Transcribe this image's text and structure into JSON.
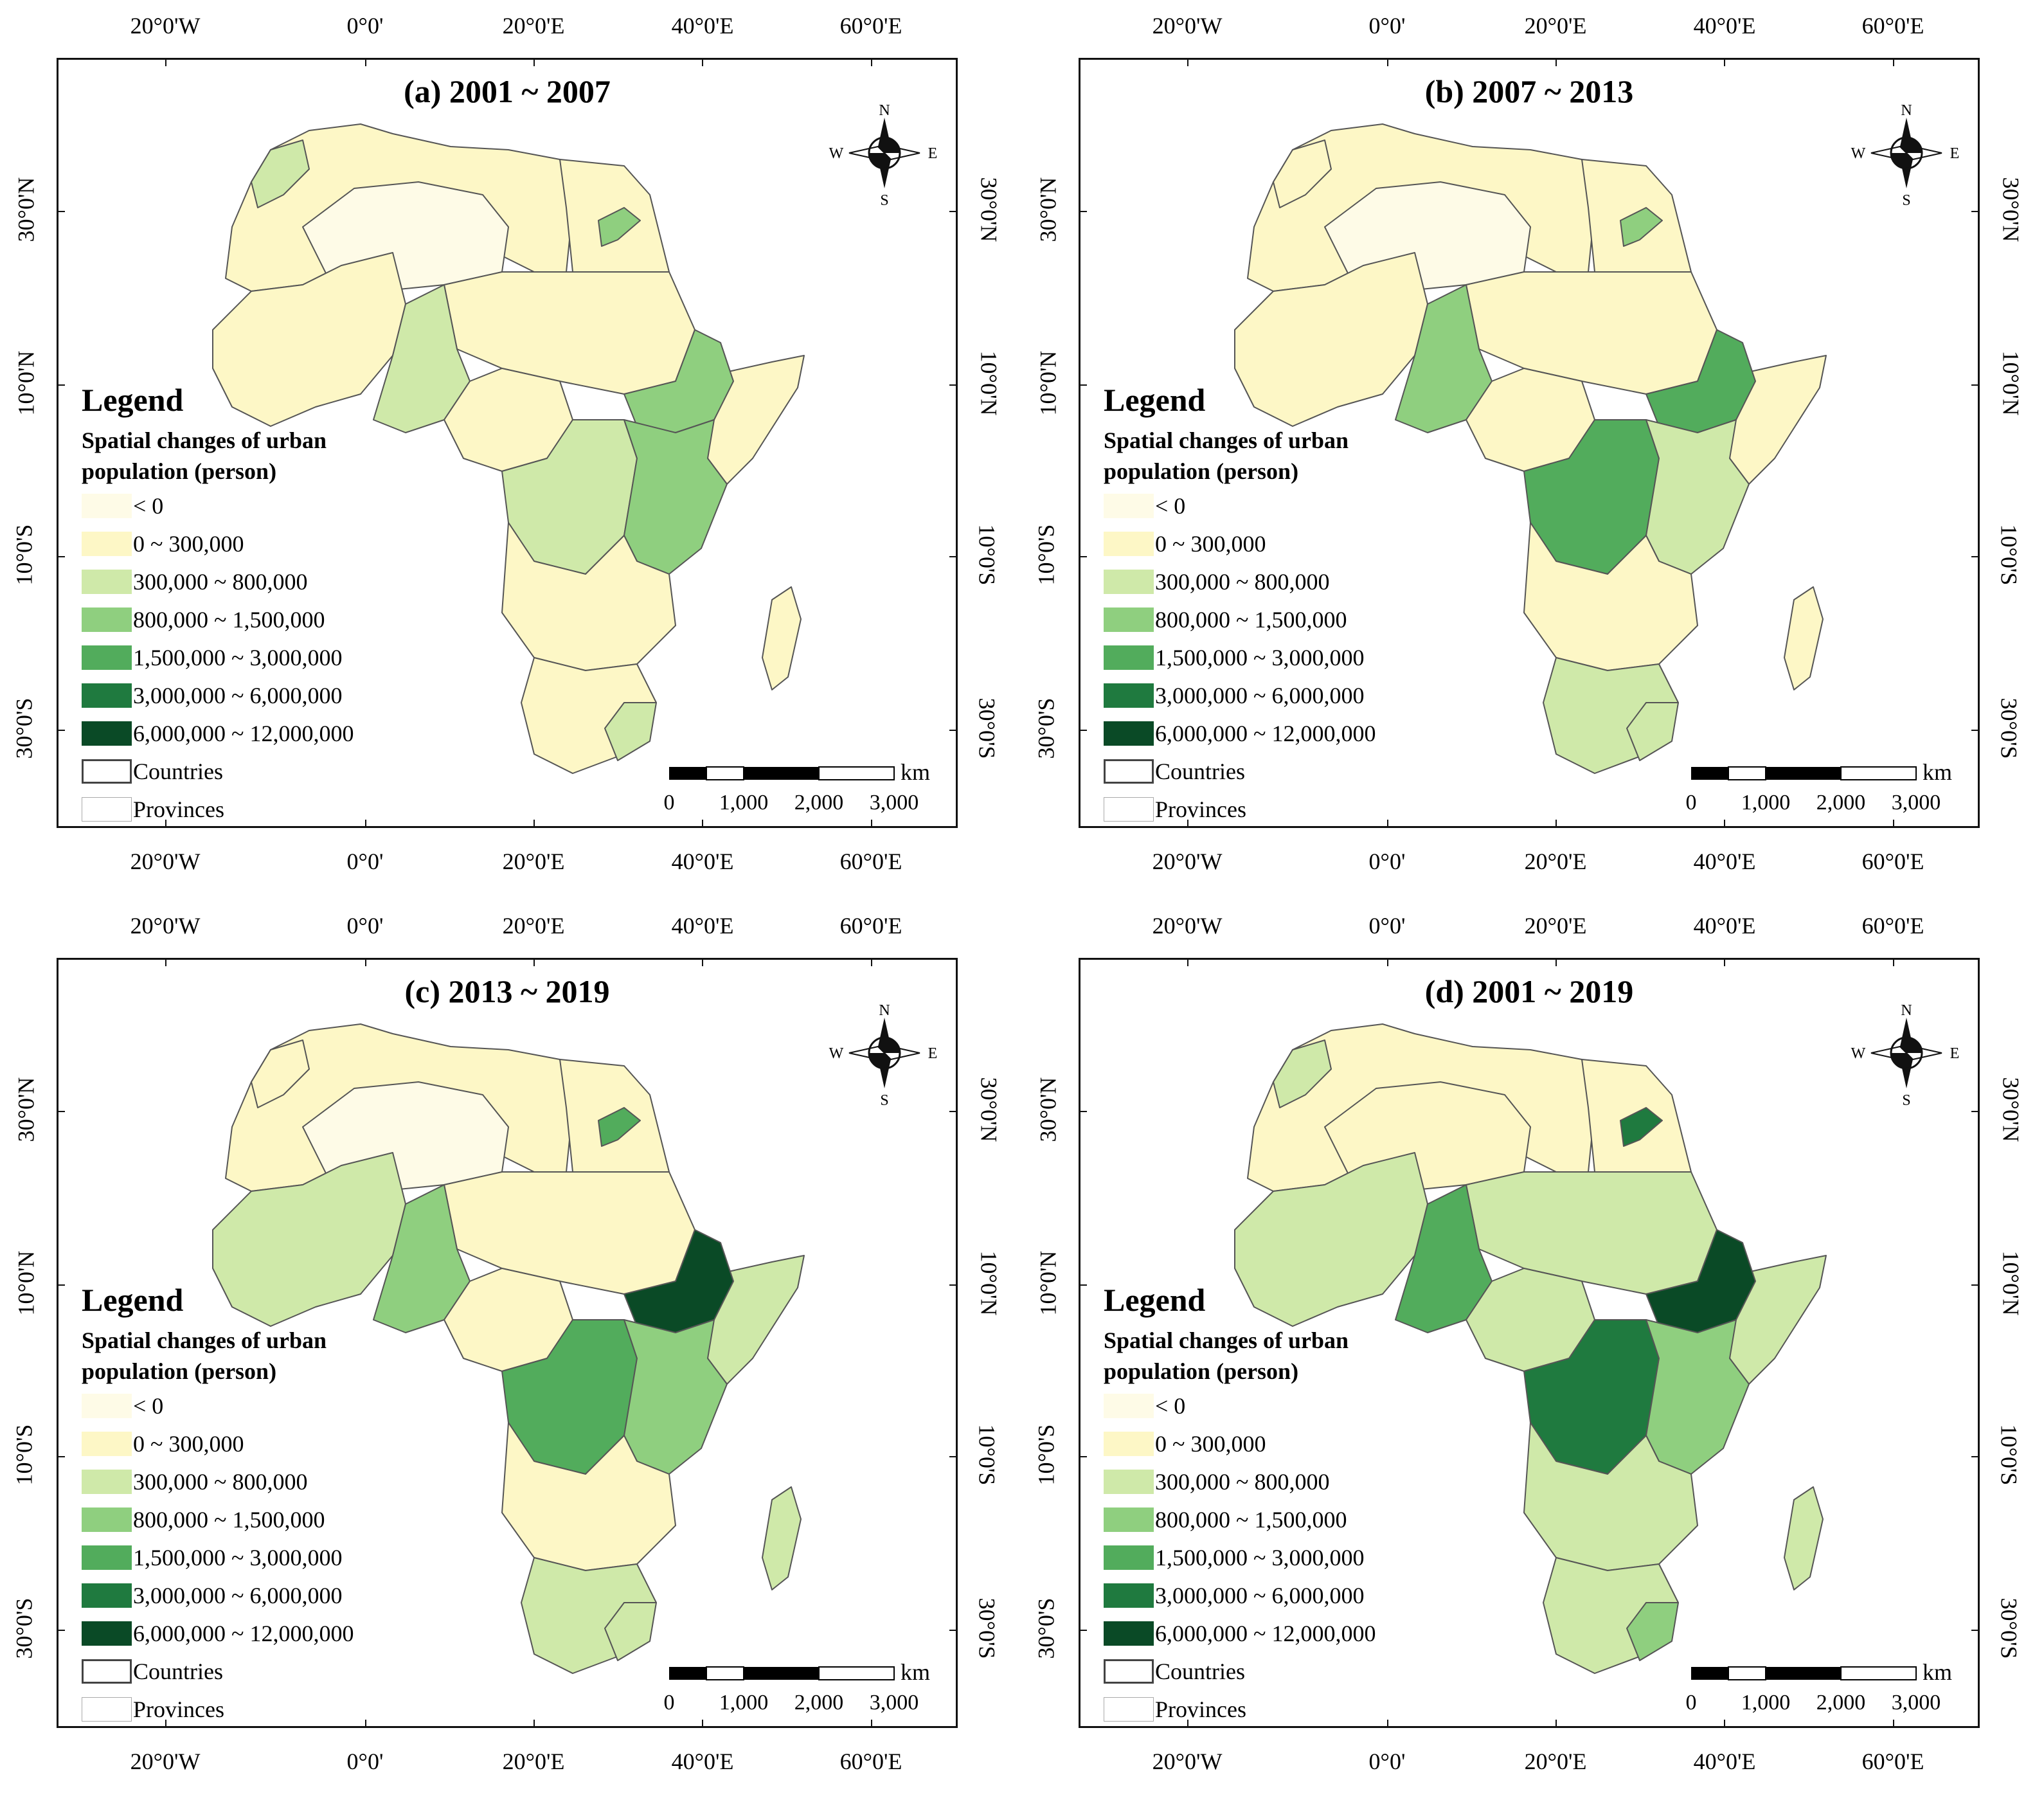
{
  "colors": {
    "neg": "#fefbe7",
    "c0": "#fdf7c6",
    "c1": "#cfe9a9",
    "c2": "#8fcf7f",
    "c3": "#52ac5c",
    "c4": "#1f7a3f",
    "c5": "#0a4a26",
    "border": "#555555"
  },
  "axes": {
    "lon_labels": [
      "20°0'W",
      "0°0'",
      "20°0'E",
      "40°0'E",
      "60°0'E"
    ],
    "lat_labels": [
      "30°0'N",
      "10°0'N",
      "10°0'S",
      "30°0'S"
    ]
  },
  "legend": {
    "heading": "Legend",
    "subtitle_line1": "Spatial changes of urban",
    "subtitle_line2": "population (person)",
    "classes": [
      {
        "label": "< 0",
        "color_key": "neg"
      },
      {
        "label": "0 ~ 300,000",
        "color_key": "c0"
      },
      {
        "label": "300,000 ~ 800,000",
        "color_key": "c1"
      },
      {
        "label": "800,000 ~ 1,500,000",
        "color_key": "c2"
      },
      {
        "label": "1,500,000 ~ 3,000,000",
        "color_key": "c3"
      },
      {
        "label": "3,000,000 ~ 6,000,000",
        "color_key": "c4"
      },
      {
        "label": "6,000,000 ~ 12,000,000",
        "color_key": "c5"
      }
    ],
    "countries_label": "Countries",
    "provinces_label": "Provinces"
  },
  "compass": {
    "n": "N",
    "s": "S",
    "e": "E",
    "w": "W"
  },
  "scale": {
    "unit": "km",
    "labels": [
      "0",
      "1,000",
      "2,000",
      "3,000"
    ]
  },
  "panels": [
    {
      "title": "(a) 2001 ~ 2007",
      "regions": {
        "northwest": "c0",
        "sahara": "neg",
        "egypt": "c0",
        "sudan": "c0",
        "westafrica": "c0",
        "nigeria": "c1",
        "ethiopia": "c2",
        "horn": "c0",
        "central": "c0",
        "congo": "c1",
        "eastafrica": "c2",
        "southcentral": "c0",
        "southern": "c0",
        "madagascar": "c0",
        "nile": "c2",
        "morocco": "c1",
        "southafrica_e": "c1"
      }
    },
    {
      "title": "(b) 2007 ~ 2013",
      "regions": {
        "northwest": "c0",
        "sahara": "neg",
        "egypt": "c0",
        "sudan": "c0",
        "westafrica": "c0",
        "nigeria": "c2",
        "ethiopia": "c3",
        "horn": "c0",
        "central": "c0",
        "congo": "c3",
        "eastafrica": "c1",
        "southcentral": "c0",
        "southern": "c1",
        "madagascar": "c0",
        "nile": "c2",
        "morocco": "c0",
        "southafrica_e": "c1"
      }
    },
    {
      "title": "(c) 2013 ~ 2019",
      "regions": {
        "northwest": "c0",
        "sahara": "neg",
        "egypt": "c0",
        "sudan": "c0",
        "westafrica": "c1",
        "nigeria": "c2",
        "ethiopia": "c5",
        "horn": "c1",
        "central": "c0",
        "congo": "c3",
        "eastafrica": "c2",
        "southcentral": "c0",
        "southern": "c1",
        "madagascar": "c1",
        "nile": "c3",
        "morocco": "c0",
        "southafrica_e": "c1"
      }
    },
    {
      "title": "(d) 2001 ~ 2019",
      "regions": {
        "northwest": "c0",
        "sahara": "c0",
        "egypt": "c0",
        "sudan": "c1",
        "westafrica": "c1",
        "nigeria": "c3",
        "ethiopia": "c5",
        "horn": "c1",
        "central": "c1",
        "congo": "c4",
        "eastafrica": "c2",
        "southcentral": "c1",
        "southern": "c1",
        "madagascar": "c1",
        "nile": "c4",
        "morocco": "c1",
        "southafrica_e": "c2"
      }
    }
  ]
}
